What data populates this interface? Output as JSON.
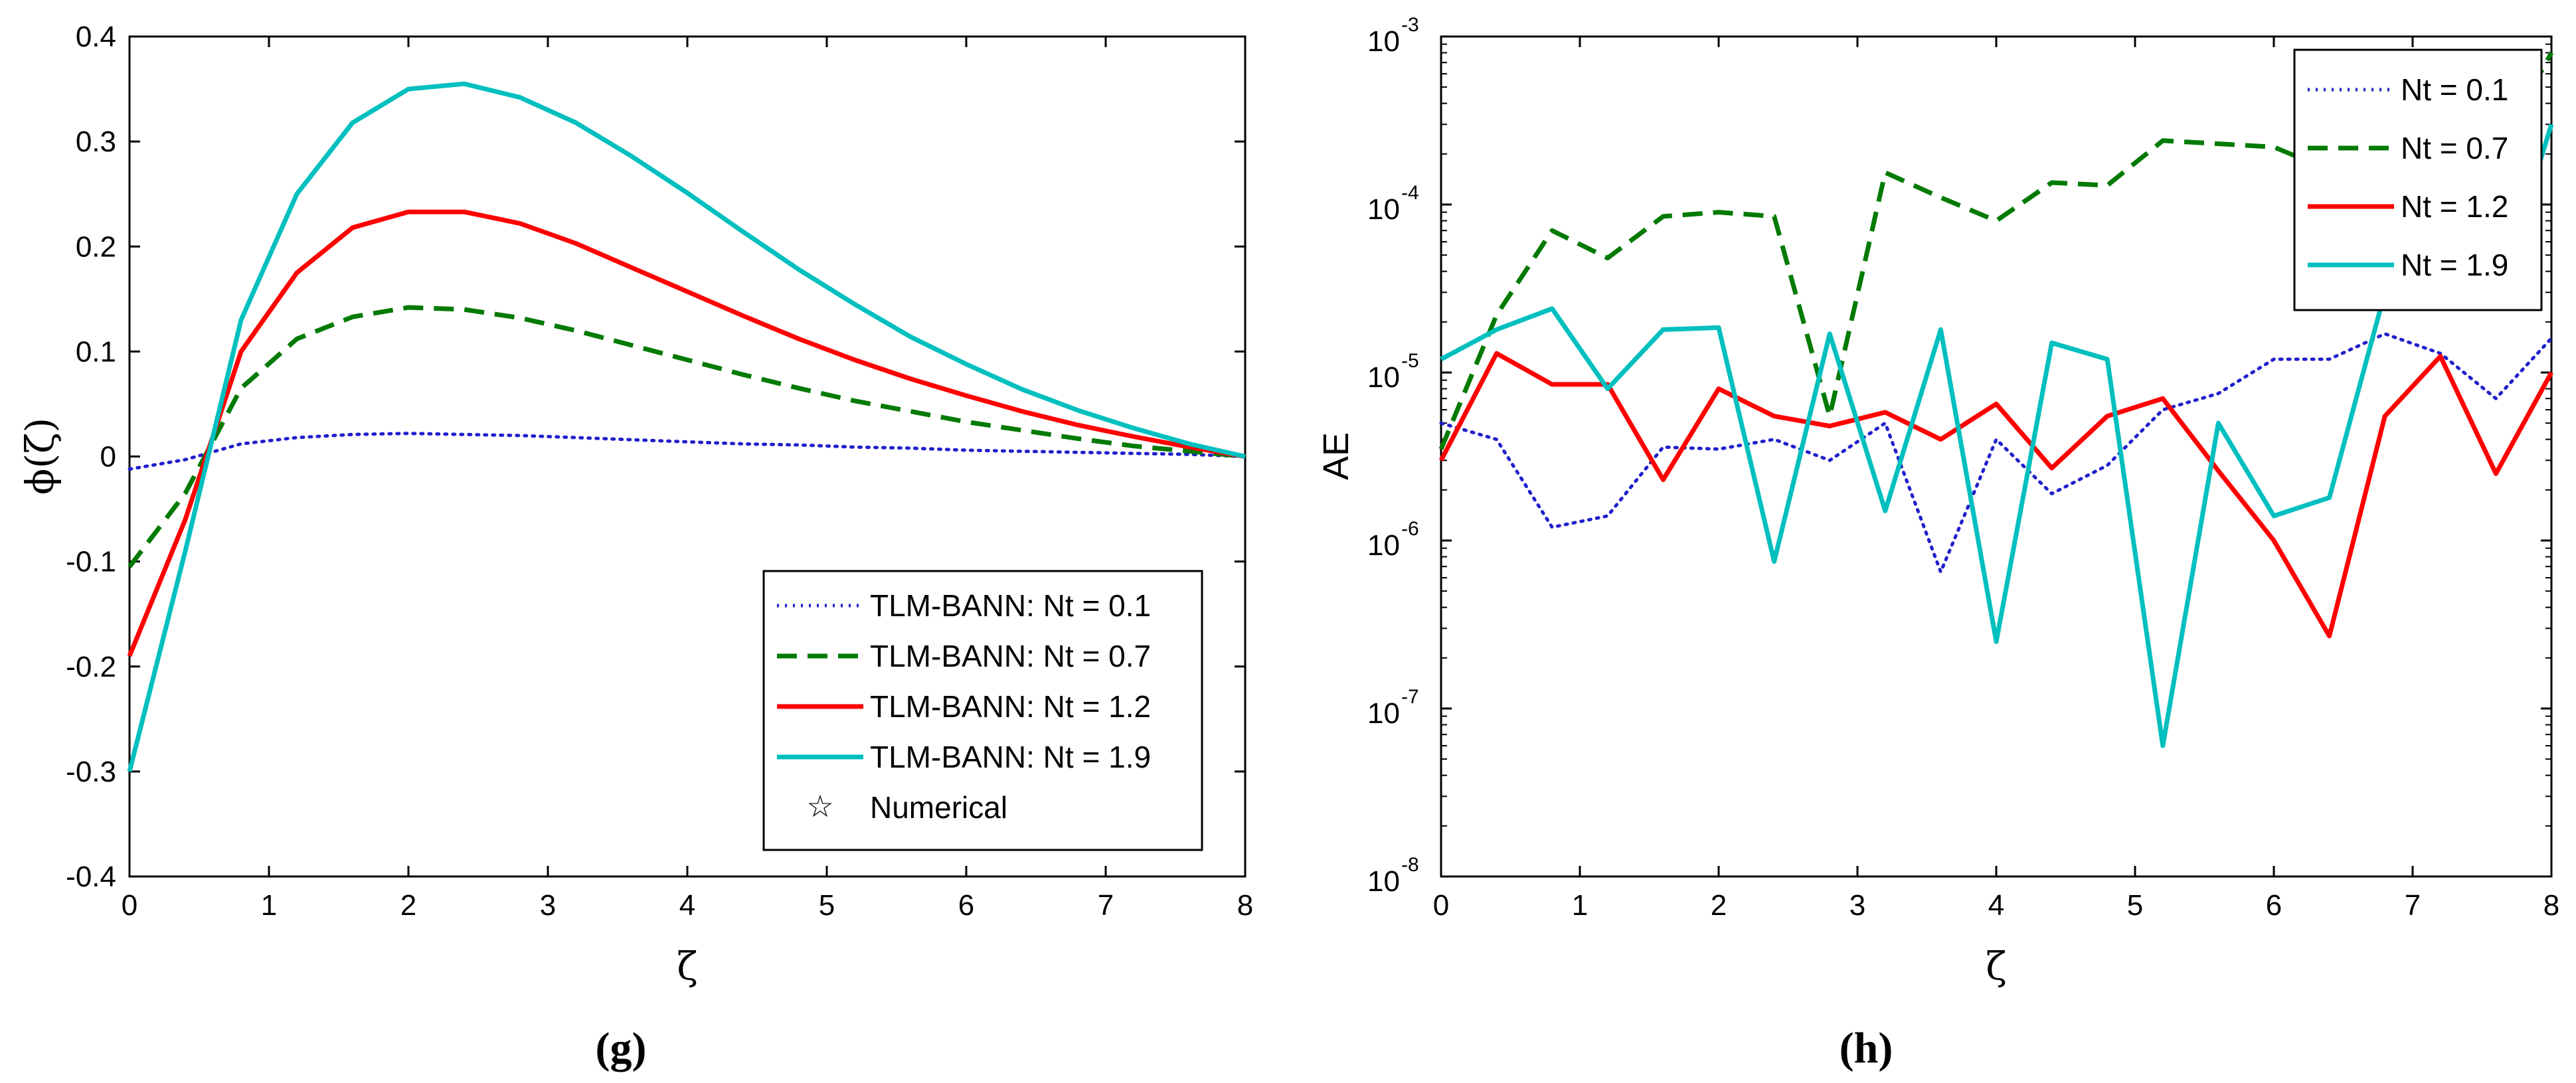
{
  "chart_data": [
    {
      "type": "line",
      "panel_label": "(g)",
      "xlabel": "ζ",
      "ylabel": "ϕ(ζ)",
      "xlim": [
        0,
        8
      ],
      "ylim": [
        -0.4,
        0.4
      ],
      "xticks": [
        "0",
        "1",
        "2",
        "3",
        "4",
        "5",
        "6",
        "7",
        "8"
      ],
      "yticks": [
        "-0.4",
        "-0.3",
        "-0.2",
        "-0.1",
        "0",
        "0.1",
        "0.2",
        "0.3",
        "0.4"
      ],
      "grid": false,
      "legend_position": "bottom-right",
      "x": [
        0,
        0.4,
        0.8,
        1.2,
        1.6,
        2.0,
        2.4,
        2.8,
        3.2,
        3.6,
        4.0,
        4.4,
        4.8,
        5.2,
        5.6,
        6.0,
        6.4,
        6.8,
        7.2,
        7.6,
        8.0
      ],
      "series": [
        {
          "name": "TLM-BANN: Nt = 0.1",
          "color": "#1f1fcc",
          "style": "dotted",
          "values": [
            -0.012,
            -0.003,
            0.012,
            0.018,
            0.021,
            0.022,
            0.021,
            0.02,
            0.018,
            0.016,
            0.014,
            0.012,
            0.011,
            0.009,
            0.008,
            0.006,
            0.005,
            0.004,
            0.003,
            0.002,
            0.0
          ]
        },
        {
          "name": "TLM-BANN: Nt = 0.7",
          "color": "#007a00",
          "style": "dashed",
          "values": [
            -0.105,
            -0.035,
            0.065,
            0.112,
            0.133,
            0.142,
            0.14,
            0.132,
            0.12,
            0.106,
            0.092,
            0.078,
            0.065,
            0.053,
            0.043,
            0.033,
            0.025,
            0.017,
            0.01,
            0.005,
            0.0
          ]
        },
        {
          "name": "TLM-BANN: Nt = 1.2",
          "color": "#ff0000",
          "style": "solid",
          "values": [
            -0.19,
            -0.06,
            0.1,
            0.175,
            0.218,
            0.233,
            0.233,
            0.222,
            0.203,
            0.18,
            0.157,
            0.134,
            0.112,
            0.092,
            0.074,
            0.058,
            0.043,
            0.03,
            0.019,
            0.009,
            0.0
          ]
        },
        {
          "name": "TLM-BANN: Nt = 1.9",
          "color": "#00bfbf",
          "style": "solid",
          "values": [
            -0.3,
            -0.09,
            0.13,
            0.25,
            0.318,
            0.35,
            0.355,
            0.342,
            0.318,
            0.286,
            0.251,
            0.214,
            0.178,
            0.145,
            0.114,
            0.088,
            0.064,
            0.044,
            0.027,
            0.012,
            0.0
          ]
        }
      ],
      "legend_extra": "Numerical"
    },
    {
      "type": "line",
      "panel_label": "(h)",
      "xlabel": "ζ",
      "ylabel": "AE",
      "xlim": [
        0,
        8
      ],
      "ylim_exponent": [
        -8,
        -3
      ],
      "yscale": "log",
      "xticks": [
        "0",
        "1",
        "2",
        "3",
        "4",
        "5",
        "6",
        "7",
        "8"
      ],
      "ytick_base": "10",
      "ytick_exponents": [
        "-8",
        "-7",
        "-6",
        "-5",
        "-4",
        "-3"
      ],
      "grid": false,
      "legend_position": "top-right",
      "x": [
        0,
        0.4,
        0.8,
        1.2,
        1.6,
        2.0,
        2.4,
        2.8,
        3.2,
        3.6,
        4.0,
        4.4,
        4.8,
        5.2,
        5.6,
        6.0,
        6.4,
        6.8,
        7.2,
        7.6,
        8.0
      ],
      "series": [
        {
          "name": "Nt = 0.1",
          "color": "#1f1fcc",
          "style": "dotted",
          "values": [
            5e-06,
            4e-06,
            1.2e-06,
            1.4e-06,
            3.6e-06,
            3.5e-06,
            4e-06,
            3e-06,
            5e-06,
            6.5e-07,
            4e-06,
            1.9e-06,
            2.8e-06,
            6e-06,
            7.5e-06,
            1.2e-05,
            1.2e-05,
            1.7e-05,
            1.3e-05,
            7e-06,
            1.6e-05
          ]
        },
        {
          "name": "Nt = 0.7",
          "color": "#007a00",
          "style": "dashed",
          "values": [
            3.5e-06,
            2.2e-05,
            7e-05,
            4.8e-05,
            8.5e-05,
            9e-05,
            8.5e-05,
            5.5e-06,
            0.000155,
            0.00011,
            8e-05,
            0.000135,
            0.00013,
            0.00024,
            0.00023,
            0.00022,
            0.00016,
            0.00025,
            0.00013,
            0.0002,
            0.0008
          ]
        },
        {
          "name": "Nt = 1.2",
          "color": "#ff0000",
          "style": "solid",
          "values": [
            3e-06,
            1.3e-05,
            8.5e-06,
            8.5e-06,
            2.3e-06,
            8e-06,
            5.5e-06,
            4.8e-06,
            5.8e-06,
            4e-06,
            6.5e-06,
            2.7e-06,
            5.5e-06,
            7e-06,
            2.6e-06,
            1e-06,
            2.7e-07,
            5.5e-06,
            1.25e-05,
            2.5e-06,
            1e-05
          ]
        },
        {
          "name": "Nt = 1.9",
          "color": "#00bfbf",
          "style": "solid",
          "values": [
            1.2e-05,
            1.8e-05,
            2.4e-05,
            8e-06,
            1.8e-05,
            1.85e-05,
            7.5e-07,
            1.7e-05,
            1.5e-06,
            1.8e-05,
            2.5e-07,
            1.5e-05,
            1.2e-05,
            6e-08,
            5e-06,
            1.4e-06,
            1.8e-06,
            3e-05,
            3.5e-05,
            2.5e-05,
            0.0003
          ]
        }
      ]
    }
  ]
}
